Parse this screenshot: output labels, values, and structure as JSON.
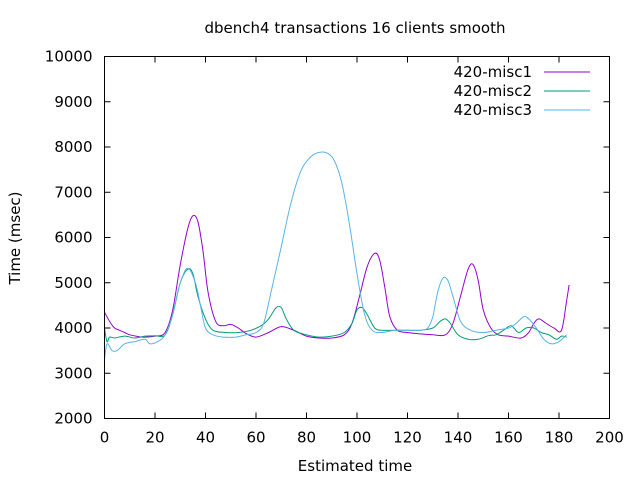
{
  "chart_data": {
    "type": "line",
    "title": "dbench4 transactions 16 clients smooth",
    "xlabel": "Estimated time",
    "ylabel": "Time (msec)",
    "xlim": [
      0,
      200
    ],
    "ylim": [
      2000,
      10000
    ],
    "xticks": [
      0,
      20,
      40,
      60,
      80,
      100,
      120,
      140,
      160,
      180,
      200
    ],
    "yticks": [
      2000,
      3000,
      4000,
      5000,
      6000,
      7000,
      8000,
      9000,
      10000
    ],
    "grid": false,
    "legend_position": "top-right",
    "series": [
      {
        "name": "420-misc1",
        "color": "#9400d3",
        "points": [
          [
            0,
            4350
          ],
          [
            2,
            4150
          ],
          [
            4,
            4000
          ],
          [
            6,
            3950
          ],
          [
            8,
            3900
          ],
          [
            10,
            3850
          ],
          [
            15,
            3800
          ],
          [
            20,
            3820
          ],
          [
            24,
            3900
          ],
          [
            27,
            4400
          ],
          [
            30,
            5400
          ],
          [
            33,
            6200
          ],
          [
            35,
            6480
          ],
          [
            37,
            6350
          ],
          [
            39,
            5700
          ],
          [
            41,
            4800
          ],
          [
            44,
            4150
          ],
          [
            47,
            4050
          ],
          [
            50,
            4080
          ],
          [
            53,
            4000
          ],
          [
            56,
            3880
          ],
          [
            60,
            3800
          ],
          [
            65,
            3900
          ],
          [
            70,
            4030
          ],
          [
            75,
            3950
          ],
          [
            80,
            3820
          ],
          [
            85,
            3780
          ],
          [
            90,
            3780
          ],
          [
            95,
            3850
          ],
          [
            98,
            4100
          ],
          [
            101,
            4700
          ],
          [
            104,
            5350
          ],
          [
            107,
            5650
          ],
          [
            109,
            5500
          ],
          [
            111,
            4900
          ],
          [
            113,
            4250
          ],
          [
            116,
            3950
          ],
          [
            120,
            3900
          ],
          [
            125,
            3870
          ],
          [
            130,
            3850
          ],
          [
            135,
            3850
          ],
          [
            138,
            4100
          ],
          [
            141,
            4700
          ],
          [
            144,
            5300
          ],
          [
            146,
            5400
          ],
          [
            148,
            5050
          ],
          [
            150,
            4400
          ],
          [
            153,
            4000
          ],
          [
            156,
            3850
          ],
          [
            160,
            3820
          ],
          [
            165,
            3780
          ],
          [
            168,
            3900
          ],
          [
            170,
            4100
          ],
          [
            172,
            4200
          ],
          [
            175,
            4100
          ],
          [
            178,
            4000
          ],
          [
            181,
            3950
          ],
          [
            183,
            4600
          ],
          [
            184,
            4950
          ]
        ]
      },
      {
        "name": "420-misc2",
        "color": "#009e73",
        "points": [
          [
            0,
            4000
          ],
          [
            1,
            3700
          ],
          [
            2,
            3800
          ],
          [
            4,
            3780
          ],
          [
            8,
            3820
          ],
          [
            12,
            3780
          ],
          [
            16,
            3820
          ],
          [
            20,
            3830
          ],
          [
            24,
            3850
          ],
          [
            27,
            4300
          ],
          [
            30,
            5000
          ],
          [
            33,
            5300
          ],
          [
            35,
            5200
          ],
          [
            37,
            4700
          ],
          [
            40,
            4200
          ],
          [
            43,
            3950
          ],
          [
            48,
            3900
          ],
          [
            53,
            3900
          ],
          [
            58,
            3950
          ],
          [
            62,
            4050
          ],
          [
            65,
            4200
          ],
          [
            68,
            4450
          ],
          [
            70,
            4450
          ],
          [
            72,
            4200
          ],
          [
            75,
            3950
          ],
          [
            80,
            3850
          ],
          [
            85,
            3800
          ],
          [
            90,
            3820
          ],
          [
            95,
            3900
          ],
          [
            98,
            4100
          ],
          [
            100,
            4400
          ],
          [
            102,
            4450
          ],
          [
            104,
            4300
          ],
          [
            107,
            4000
          ],
          [
            110,
            3950
          ],
          [
            115,
            3950
          ],
          [
            120,
            3950
          ],
          [
            125,
            3950
          ],
          [
            130,
            4000
          ],
          [
            133,
            4150
          ],
          [
            135,
            4200
          ],
          [
            137,
            4100
          ],
          [
            140,
            3850
          ],
          [
            144,
            3750
          ],
          [
            148,
            3750
          ],
          [
            152,
            3830
          ],
          [
            155,
            3850
          ],
          [
            158,
            3950
          ],
          [
            161,
            4050
          ],
          [
            164,
            3900
          ],
          [
            167,
            4000
          ],
          [
            170,
            4000
          ],
          [
            173,
            3900
          ],
          [
            176,
            3850
          ],
          [
            179,
            3750
          ],
          [
            181,
            3820
          ],
          [
            183,
            3800
          ]
        ]
      },
      {
        "name": "420-misc3",
        "color": "#56b4e9",
        "points": [
          [
            0,
            3300
          ],
          [
            1,
            3650
          ],
          [
            3,
            3500
          ],
          [
            5,
            3500
          ],
          [
            8,
            3650
          ],
          [
            12,
            3700
          ],
          [
            16,
            3750
          ],
          [
            18,
            3650
          ],
          [
            21,
            3700
          ],
          [
            24,
            3850
          ],
          [
            27,
            4300
          ],
          [
            30,
            5000
          ],
          [
            33,
            5320
          ],
          [
            36,
            5000
          ],
          [
            38,
            4500
          ],
          [
            40,
            4000
          ],
          [
            43,
            3850
          ],
          [
            47,
            3800
          ],
          [
            52,
            3800
          ],
          [
            56,
            3850
          ],
          [
            60,
            3900
          ],
          [
            63,
            4100
          ],
          [
            66,
            4800
          ],
          [
            70,
            5800
          ],
          [
            74,
            6800
          ],
          [
            78,
            7500
          ],
          [
            82,
            7800
          ],
          [
            85,
            7880
          ],
          [
            88,
            7870
          ],
          [
            91,
            7700
          ],
          [
            94,
            7200
          ],
          [
            97,
            6300
          ],
          [
            100,
            5200
          ],
          [
            103,
            4300
          ],
          [
            106,
            3950
          ],
          [
            110,
            3900
          ],
          [
            115,
            3950
          ],
          [
            120,
            3950
          ],
          [
            125,
            3950
          ],
          [
            128,
            4000
          ],
          [
            130,
            4250
          ],
          [
            132,
            4800
          ],
          [
            134,
            5100
          ],
          [
            136,
            5050
          ],
          [
            138,
            4700
          ],
          [
            141,
            4150
          ],
          [
            145,
            3950
          ],
          [
            150,
            3900
          ],
          [
            155,
            3950
          ],
          [
            160,
            4000
          ],
          [
            163,
            4100
          ],
          [
            166,
            4250
          ],
          [
            168,
            4200
          ],
          [
            171,
            4000
          ],
          [
            174,
            3750
          ],
          [
            177,
            3650
          ],
          [
            180,
            3700
          ],
          [
            183,
            3850
          ]
        ]
      }
    ]
  }
}
